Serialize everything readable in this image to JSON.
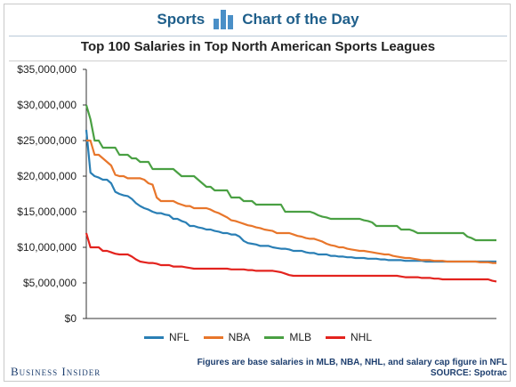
{
  "header": {
    "left": "Sports",
    "right": "Chart of the Day"
  },
  "chart_data": {
    "type": "line",
    "title": "Top 100 Salaries in Top North American Sports Leagues",
    "xlabel": "",
    "ylabel": "",
    "ylim": [
      0,
      35000000
    ],
    "yticks": [
      "$0",
      "$5,000,000",
      "$10,000,000",
      "$15,000,000",
      "$20,000,000",
      "$25,000,000",
      "$30,000,000",
      "$35,000,000"
    ],
    "xlim": [
      1,
      100
    ],
    "grid": false,
    "legend_position": "bottom",
    "series": [
      {
        "name": "NFL",
        "color": "#2a7fb5",
        "values": [
          26500000,
          20500000,
          20000000,
          19800000,
          19500000,
          19500000,
          19000000,
          17800000,
          17500000,
          17300000,
          17200000,
          16800000,
          16200000,
          15800000,
          15500000,
          15300000,
          15000000,
          14800000,
          14800000,
          14600000,
          14500000,
          14000000,
          14000000,
          13700000,
          13500000,
          13000000,
          13000000,
          12800000,
          12700000,
          12500000,
          12500000,
          12300000,
          12200000,
          12000000,
          12000000,
          11800000,
          11800000,
          11500000,
          10900000,
          10600000,
          10500000,
          10400000,
          10200000,
          10200000,
          10200000,
          10000000,
          9900000,
          9800000,
          9800000,
          9700000,
          9500000,
          9500000,
          9500000,
          9300000,
          9200000,
          9200000,
          9000000,
          9000000,
          9000000,
          8800000,
          8800000,
          8700000,
          8700000,
          8600000,
          8600000,
          8500000,
          8500000,
          8500000,
          8400000,
          8400000,
          8400000,
          8300000,
          8300000,
          8200000,
          8200000,
          8200000,
          8200000,
          8100000,
          8100000,
          8100000,
          8100000,
          8100000,
          8000000,
          8000000,
          8000000,
          8000000,
          8000000,
          8000000,
          8000000,
          8000000,
          8000000,
          8000000,
          8000000,
          8000000,
          8000000,
          8000000,
          8000000,
          8000000,
          8000000,
          8000000
        ]
      },
      {
        "name": "NBA",
        "color": "#e8762b",
        "values": [
          25000000,
          25000000,
          23000000,
          23000000,
          22500000,
          22000000,
          21500000,
          20200000,
          20000000,
          20000000,
          19700000,
          19700000,
          19700000,
          19700000,
          19500000,
          19000000,
          18800000,
          17000000,
          16500000,
          16500000,
          16500000,
          16500000,
          16200000,
          16000000,
          15800000,
          15800000,
          15500000,
          15500000,
          15500000,
          15500000,
          15300000,
          15000000,
          14800000,
          14500000,
          14200000,
          13800000,
          13700000,
          13500000,
          13300000,
          13100000,
          13000000,
          12800000,
          12700000,
          12500000,
          12400000,
          12300000,
          12000000,
          12000000,
          12000000,
          12000000,
          11800000,
          11600000,
          11500000,
          11300000,
          11200000,
          11200000,
          11000000,
          10800000,
          10500000,
          10300000,
          10200000,
          10000000,
          10000000,
          9800000,
          9700000,
          9600000,
          9500000,
          9500000,
          9400000,
          9300000,
          9200000,
          9100000,
          9000000,
          9000000,
          8800000,
          8700000,
          8600000,
          8500000,
          8500000,
          8400000,
          8300000,
          8200000,
          8200000,
          8200000,
          8100000,
          8100000,
          8100000,
          8000000,
          8000000,
          8000000,
          8000000,
          8000000,
          8000000,
          8000000,
          8000000,
          7900000,
          7900000,
          7900000,
          7800000,
          7800000
        ]
      },
      {
        "name": "MLB",
        "color": "#4aa043",
        "values": [
          30000000,
          28000000,
          25000000,
          25000000,
          24000000,
          24000000,
          24000000,
          24000000,
          23000000,
          23000000,
          23000000,
          22500000,
          22500000,
          22000000,
          22000000,
          22000000,
          21000000,
          21000000,
          21000000,
          21000000,
          21000000,
          21000000,
          20500000,
          20000000,
          20000000,
          20000000,
          20000000,
          19500000,
          19000000,
          18500000,
          18500000,
          18000000,
          18000000,
          18000000,
          18000000,
          17000000,
          17000000,
          17000000,
          16500000,
          16500000,
          16500000,
          16000000,
          16000000,
          16000000,
          16000000,
          16000000,
          16000000,
          16000000,
          15000000,
          15000000,
          15000000,
          15000000,
          15000000,
          15000000,
          15000000,
          14800000,
          14500000,
          14300000,
          14200000,
          14000000,
          14000000,
          14000000,
          14000000,
          14000000,
          14000000,
          14000000,
          14000000,
          13800000,
          13700000,
          13500000,
          13000000,
          13000000,
          13000000,
          13000000,
          13000000,
          13000000,
          12500000,
          12500000,
          12500000,
          12300000,
          12000000,
          12000000,
          12000000,
          12000000,
          12000000,
          12000000,
          12000000,
          12000000,
          12000000,
          12000000,
          12000000,
          12000000,
          11500000,
          11300000,
          11000000,
          11000000,
          11000000,
          11000000,
          11000000,
          11000000
        ]
      },
      {
        "name": "NHL",
        "color": "#e3231e",
        "values": [
          12000000,
          10000000,
          10000000,
          10000000,
          9500000,
          9500000,
          9300000,
          9100000,
          9000000,
          9000000,
          9000000,
          8700000,
          8300000,
          8000000,
          7900000,
          7800000,
          7800000,
          7700000,
          7500000,
          7500000,
          7500000,
          7300000,
          7300000,
          7300000,
          7200000,
          7100000,
          7000000,
          7000000,
          7000000,
          7000000,
          7000000,
          7000000,
          7000000,
          7000000,
          7000000,
          6900000,
          6900000,
          6900000,
          6900000,
          6800000,
          6800000,
          6700000,
          6700000,
          6700000,
          6700000,
          6700000,
          6600000,
          6500000,
          6300000,
          6100000,
          6000000,
          6000000,
          6000000,
          6000000,
          6000000,
          6000000,
          6000000,
          6000000,
          6000000,
          6000000,
          6000000,
          6000000,
          6000000,
          6000000,
          6000000,
          6000000,
          6000000,
          6000000,
          6000000,
          6000000,
          6000000,
          6000000,
          6000000,
          6000000,
          6000000,
          6000000,
          5900000,
          5800000,
          5800000,
          5800000,
          5800000,
          5700000,
          5700000,
          5700000,
          5600000,
          5600000,
          5500000,
          5500000,
          5500000,
          5500000,
          5500000,
          5500000,
          5500000,
          5500000,
          5500000,
          5500000,
          5500000,
          5500000,
          5300000,
          5200000
        ]
      }
    ]
  },
  "footer": {
    "brand": "Business Insider",
    "note_line1": "Figures are base salaries in MLB, NBA, NHL, and salary cap figure in NFL",
    "note_line2": "SOURCE: Spotrac"
  }
}
